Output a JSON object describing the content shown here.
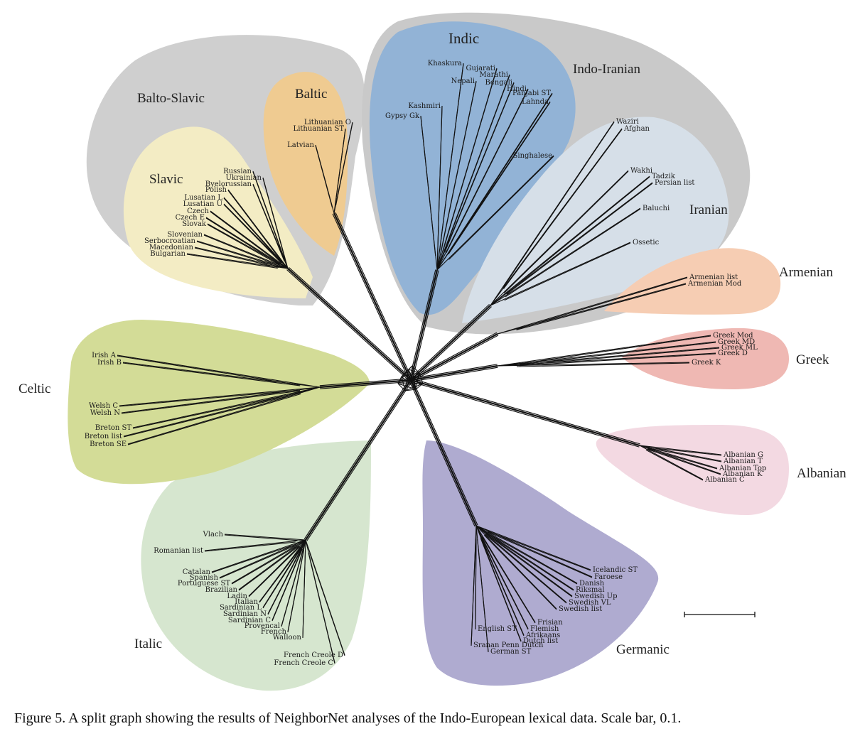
{
  "caption": "Figure 5. A split graph showing the results of NeighborNet analyses of the Indo-European lexical data. Scale bar, 0.1.",
  "groups": {
    "balto_slavic": "Balto-Slavic",
    "slavic": "Slavic",
    "baltic": "Baltic",
    "indic": "Indic",
    "indo_iranian": "Indo-Iranian",
    "iranian": "Iranian",
    "armenian": "Armenian",
    "greek": "Greek",
    "albanian": "Albanian",
    "germanic": "Germanic",
    "italic": "Italic",
    "celtic": "Celtic"
  },
  "colors": {
    "balto_slavic": "#cfcfcf",
    "slavic": "#f3ecc4",
    "baltic": "#efcb91",
    "indo_iranian": "#c9c9c9",
    "indic": "#92b3d6",
    "iranian": "#d6dfe8",
    "armenian": "#f6cdb3",
    "greek": "#efb8b3",
    "albanian": "#f3d9e2",
    "germanic": "#afabd0",
    "italic": "#d6e6cf",
    "celtic": "#d3dc97"
  },
  "leaves": {
    "slavic": [
      "Russian",
      "Ukrainian",
      "Byelorussian",
      "Polish",
      "Lusatian L",
      "Lusatian U",
      "Czech",
      "Czech E",
      "Slovak",
      "Slovenian",
      "Serbocroatian",
      "Macedonian",
      "Bulgarian"
    ],
    "baltic": [
      "Lithuanian O",
      "Lithuanian ST",
      "Latvian"
    ],
    "indic": [
      "Khaskura",
      "Gujarati",
      "Marathi",
      "Nepali",
      "Bengali",
      "Hindi",
      "Panjabi ST",
      "Lahnda",
      "Kashmiri",
      "Gypsy Gk",
      "Singhalese"
    ],
    "iranian": [
      "Waziri",
      "Afghan",
      "Wakhi",
      "Tadzik",
      "Persian list",
      "Baluchi",
      "Ossetic"
    ],
    "armenian": [
      "Armenian list",
      "Armenian Mod"
    ],
    "greek": [
      "Greek Mod",
      "Greek MD",
      "Greek ML",
      "Greek D",
      "Greek K"
    ],
    "albanian": [
      "Albanian G",
      "Albanian T",
      "Albanian Top",
      "Albanian K",
      "Albanian C"
    ],
    "germanic": [
      "Icelandic ST",
      "Faroese",
      "Danish",
      "Riksmal",
      "Swedish Up",
      "Swedish VL",
      "Swedish list",
      "Frisian",
      "Flemish",
      "Afrikaans",
      "Dutch list",
      "English ST",
      "Sranan Penn Dutch",
      "German ST"
    ],
    "italic": [
      "Vlach",
      "Romanian list",
      "Catalan",
      "Spanish",
      "Portuguese ST",
      "Brazilian",
      "Ladin",
      "Italian",
      "Sardinian L",
      "Sardinian N",
      "Sardinian C",
      "Provencal",
      "French",
      "Walloon",
      "French Creole D",
      "French Creole C"
    ],
    "celtic": [
      "Irish A",
      "Irish B",
      "Welsh C",
      "Welsh N",
      "Breton ST",
      "Breton list",
      "Breton SE"
    ]
  }
}
